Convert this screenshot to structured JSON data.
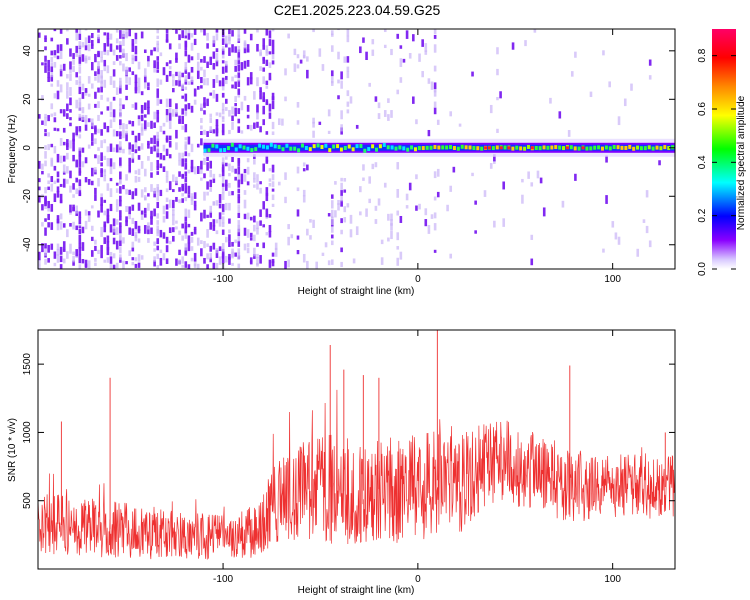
{
  "figure_title": "C2E1.2025.223.04.59.G25",
  "chart_data": [
    {
      "type": "heatmap",
      "title": "",
      "xlabel": "Height of straight line (km)",
      "ylabel": "Frequency (Hz)",
      "xlim": [
        -195,
        132
      ],
      "ylim": [
        -50,
        49
      ],
      "x_ticks": [
        -100,
        0,
        100
      ],
      "x_tick_labels": [
        "-100",
        "0",
        "100"
      ],
      "y_ticks": [
        -40,
        -20,
        0,
        20,
        40
      ],
      "y_tick_labels": [
        "-40",
        "-20",
        "0",
        "20",
        "40"
      ],
      "colorbar": {
        "label": "Normalized spectral amplitude",
        "range": [
          0.0,
          0.9
        ],
        "ticks": [
          0.0,
          0.2,
          0.4,
          0.6,
          0.8
        ],
        "tick_labels": [
          "0.0",
          "0.2",
          "0.4",
          "0.6",
          "0.8"
        ],
        "colormap": [
          "#ffffff",
          "#7f00ff",
          "#0000ff",
          "#00ffff",
          "#00ff00",
          "#ffff00",
          "#ff8000",
          "#ff0000",
          "#ff00aa"
        ]
      },
      "features": {
        "noise_region_x": [
          -195,
          -75
        ],
        "sparse_noise_region_x": [
          -75,
          10
        ],
        "signal_band_start_x": -110,
        "signal_band_center_hz": 0,
        "noise_color": "#7a1cf0"
      },
      "grid": false
    },
    {
      "type": "line",
      "title": "",
      "xlabel": "Height of straight line (km)",
      "ylabel": "SNR (10 * v/v)",
      "xlim": [
        -195,
        132
      ],
      "ylim": [
        0,
        1750
      ],
      "x_ticks": [
        -100,
        0,
        100
      ],
      "x_tick_labels": [
        "-100",
        "0",
        "100"
      ],
      "y_ticks": [
        500,
        1000,
        1500
      ],
      "y_tick_labels": [
        "500",
        "1000",
        "1500"
      ],
      "series": [
        {
          "color": "#ee3030",
          "x": [
            -195,
            -180,
            -165,
            -150,
            -135,
            -120,
            -105,
            -90,
            -80,
            -75,
            -65,
            -55,
            -45,
            -35,
            -25,
            -15,
            -5,
            5,
            15,
            25,
            35,
            45,
            55,
            65,
            75,
            85,
            95,
            105,
            115,
            125,
            132
          ],
          "y": [
            330,
            320,
            300,
            280,
            260,
            240,
            230,
            250,
            300,
            480,
            540,
            580,
            600,
            560,
            580,
            590,
            600,
            640,
            660,
            640,
            760,
            780,
            740,
            700,
            640,
            600,
            630,
            610,
            600,
            600,
            600
          ],
          "spread": [
            170,
            170,
            165,
            160,
            150,
            140,
            130,
            135,
            160,
            230,
            260,
            300,
            320,
            300,
            300,
            310,
            320,
            320,
            310,
            290,
            250,
            240,
            240,
            230,
            220,
            200,
            190,
            180,
            180,
            180,
            180
          ]
        }
      ],
      "peaks": [
        {
          "x": -183,
          "y": 1080
        },
        {
          "x": -158,
          "y": 1400
        },
        {
          "x": -45,
          "y": 1640
        },
        {
          "x": -38,
          "y": 1460
        },
        {
          "x": -28,
          "y": 1420
        },
        {
          "x": -20,
          "y": 1400
        },
        {
          "x": 10,
          "y": 1760
        },
        {
          "x": 78,
          "y": 1490
        },
        {
          "x": 127,
          "y": 1000
        }
      ],
      "grid": false
    }
  ]
}
